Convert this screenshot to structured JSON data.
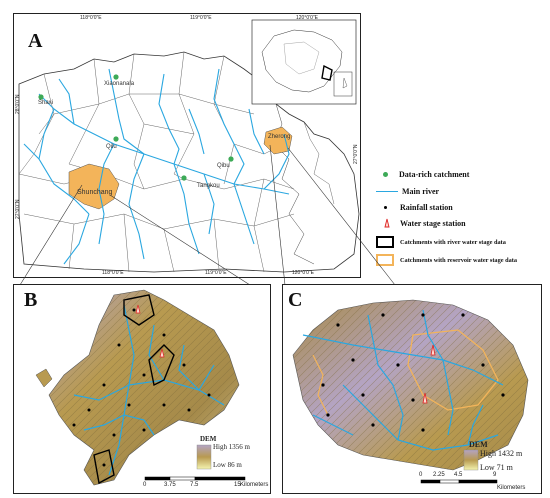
{
  "panel_a": {
    "label": "A",
    "top_ticks": [
      "118°0'0\"E",
      "119°0'0\"E",
      "120°0'0\"E"
    ],
    "bottom_ticks": [
      "118°0'0\"E",
      "119°0'0\"E",
      "120°0'0\"E"
    ],
    "left_ticks": [
      "28°0'0\"N",
      "27°0'0\"N"
    ],
    "right_ticks": [
      "27°0'0\"N"
    ],
    "places": {
      "xiaonanala": "Xiaonanala",
      "shaxi": "Shaxi",
      "qilu": "Qilu",
      "zherong": "Zherong",
      "qibu": "Qibu",
      "tangkou": "Tangkou",
      "shunchang": "Shunchang"
    }
  },
  "legend": {
    "data_rich": "Data-rich catchment",
    "main_river": "Main river",
    "rainfall": "Rainfall station",
    "water_stage": "Water stage station",
    "river_catchments": "Catchments with river water stage data",
    "reservoir_catchments": "Catchments with reservoir water stage data"
  },
  "panel_b": {
    "label": "B",
    "dem_title": "DEM",
    "dem_high": "High 1356 m",
    "dem_low": "Low  86 m",
    "scale_ticks": [
      "0",
      "3.75",
      "7.5",
      "15"
    ],
    "scale_unit": "Kilometers"
  },
  "panel_c": {
    "label": "C",
    "dem_title": "DEM",
    "dem_high": "High 1432 m",
    "dem_low": "Low  71 m",
    "scale_ticks": [
      "0",
      "2.25",
      "4.5",
      "9"
    ],
    "scale_unit": "Kilometers"
  },
  "colors": {
    "river": "#2aa7e0",
    "catchment_fill": "#f3b45a",
    "data_rich_dot": "#3daa57",
    "boundary": "#333333",
    "dem_high": "#b4a4c4",
    "dem_mid": "#b89a50",
    "dem_low": "#f4f4b0"
  }
}
